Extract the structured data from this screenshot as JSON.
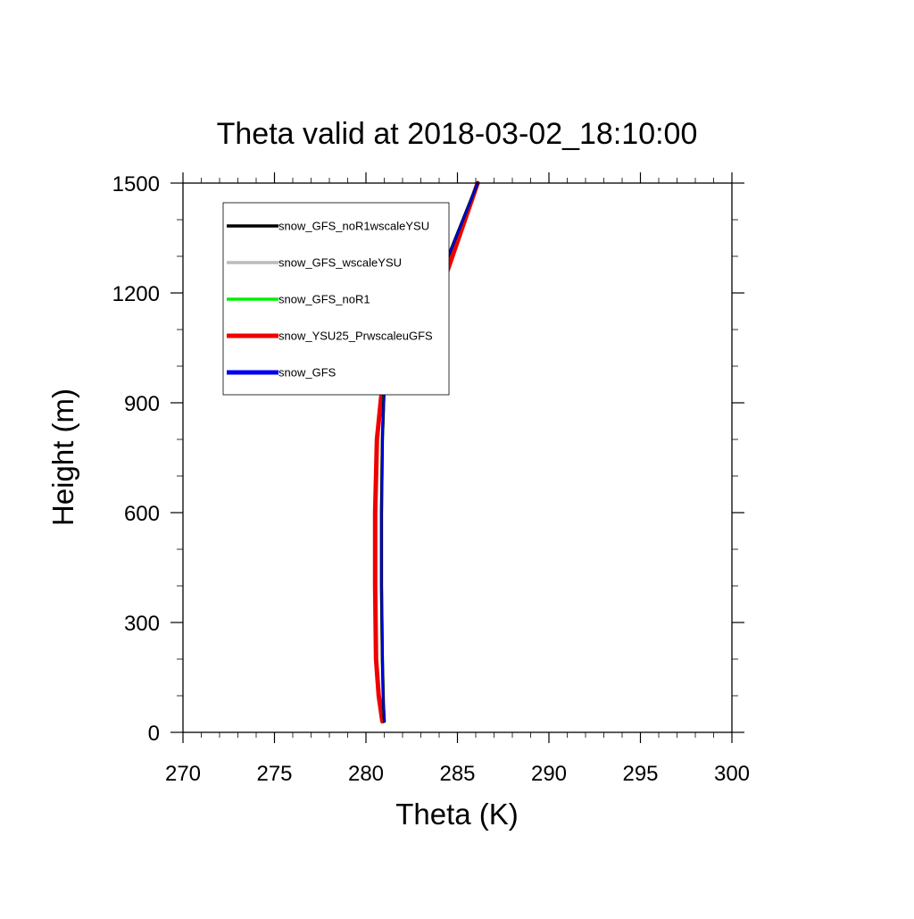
{
  "chart_data": {
    "type": "line",
    "title": "Theta valid at 2018-03-02_18:10:00",
    "xlabel": "Theta (K)",
    "ylabel": "Height (m)",
    "xlim": [
      270,
      300
    ],
    "ylim": [
      0,
      1500
    ],
    "xticks": [
      "270",
      "275",
      "280",
      "285",
      "290",
      "295",
      "300"
    ],
    "yticks": [
      "0",
      "300",
      "600",
      "900",
      "1200",
      "1500"
    ],
    "grid": false,
    "legend_position": "upper-left",
    "series": [
      {
        "name": "snow_GFS_noR1wscaleYSU",
        "color": "#000000",
        "points": [
          [
            281.0,
            30
          ],
          [
            280.95,
            80
          ],
          [
            280.9,
            200
          ],
          [
            280.85,
            400
          ],
          [
            280.85,
            600
          ],
          [
            280.9,
            800
          ],
          [
            281.0,
            950
          ],
          [
            281.3,
            1080
          ],
          [
            283.7,
            1190
          ],
          [
            284.5,
            1300
          ],
          [
            286.1,
            1500
          ]
        ]
      },
      {
        "name": "snow_GFS_wscaleYSU",
        "color": "#bbbbbb",
        "points": [
          [
            281.0,
            30
          ],
          [
            280.95,
            80
          ],
          [
            280.9,
            200
          ],
          [
            280.85,
            400
          ],
          [
            280.85,
            600
          ],
          [
            280.9,
            800
          ],
          [
            281.0,
            950
          ],
          [
            281.3,
            1080
          ],
          [
            283.7,
            1190
          ],
          [
            284.5,
            1300
          ],
          [
            286.1,
            1500
          ]
        ]
      },
      {
        "name": "snow_GFS_noR1",
        "color": "#00ee00",
        "points": [
          [
            281.0,
            30
          ],
          [
            280.95,
            80
          ],
          [
            280.9,
            200
          ],
          [
            280.85,
            400
          ],
          [
            280.85,
            600
          ],
          [
            280.9,
            800
          ],
          [
            281.0,
            950
          ],
          [
            281.3,
            1080
          ],
          [
            283.7,
            1190
          ],
          [
            284.5,
            1300
          ],
          [
            286.1,
            1500
          ]
        ]
      },
      {
        "name": "snow_YSU25_PrwscaleuGFS",
        "color": "#ee0000",
        "points": [
          [
            280.9,
            30
          ],
          [
            280.7,
            100
          ],
          [
            280.55,
            200
          ],
          [
            280.5,
            400
          ],
          [
            280.5,
            600
          ],
          [
            280.6,
            800
          ],
          [
            280.8,
            900
          ],
          [
            281.0,
            990
          ],
          [
            283.9,
            1180
          ],
          [
            286.1,
            1500
          ]
        ]
      },
      {
        "name": "snow_GFS",
        "color": "#0000ee",
        "points": [
          [
            281.0,
            30
          ],
          [
            280.95,
            80
          ],
          [
            280.9,
            200
          ],
          [
            280.85,
            400
          ],
          [
            280.85,
            600
          ],
          [
            280.9,
            800
          ],
          [
            281.0,
            950
          ],
          [
            281.3,
            1080
          ],
          [
            283.7,
            1190
          ],
          [
            284.5,
            1300
          ],
          [
            286.1,
            1500
          ]
        ]
      }
    ]
  }
}
